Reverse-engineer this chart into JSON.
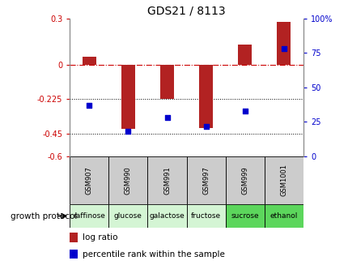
{
  "title": "GDS21 / 8113",
  "samples": [
    "GSM907",
    "GSM990",
    "GSM991",
    "GSM997",
    "GSM999",
    "GSM1001"
  ],
  "protocols": [
    "raffinose",
    "glucose",
    "galactose",
    "fructose",
    "sucrose",
    "ethanol"
  ],
  "log_ratios": [
    0.05,
    -0.42,
    -0.225,
    -0.415,
    0.13,
    0.28
  ],
  "percentile_ranks": [
    37,
    18,
    28,
    22,
    33,
    78
  ],
  "ylim_left": [
    -0.6,
    0.3
  ],
  "ylim_right": [
    0,
    100
  ],
  "yticks_left": [
    0.3,
    0,
    -0.225,
    -0.45,
    -0.6
  ],
  "ytick_labels_left": [
    "0.3",
    "0",
    "-0.225",
    "-0.45",
    "-0.6"
  ],
  "yticks_right": [
    100,
    75,
    50,
    25,
    0
  ],
  "ytick_labels_right": [
    "100%",
    "75",
    "50",
    "25",
    "0"
  ],
  "dotted_lines": [
    -0.225,
    -0.45
  ],
  "bar_color": "#b22222",
  "dot_color": "#0000cd",
  "bg_color": "#ffffff",
  "left_tick_color": "#cc0000",
  "right_tick_color": "#0000cc",
  "protocol_colors": [
    "#d4f5d4",
    "#d4f5d4",
    "#d4f5d4",
    "#d4f5d4",
    "#5cd65c",
    "#5cd65c"
  ],
  "sample_bg_color": "#cccccc",
  "legend_label_ratio": "log ratio",
  "legend_label_pct": "percentile rank within the sample",
  "growth_protocol_label": "growth protocol",
  "bar_width": 0.35,
  "title_fontsize": 10,
  "tick_fontsize": 7,
  "sample_fontsize": 6,
  "proto_fontsize": 6.5,
  "legend_fontsize": 7.5
}
